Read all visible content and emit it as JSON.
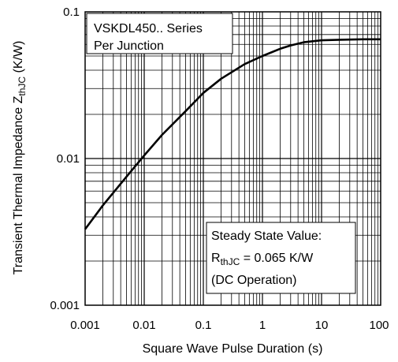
{
  "chart_data": {
    "type": "line",
    "title": "",
    "xlabel": "Square Wave Pulse Duration (s)",
    "ylabel": {
      "prefix": "Transient Thermal Impedance Z",
      "subscript": "thJC",
      "suffix": " (K/W)"
    },
    "x_scale": "log",
    "y_scale": "log",
    "xlim": [
      0.001,
      100
    ],
    "ylim": [
      0.001,
      0.1
    ],
    "grid": true,
    "x_tick_labels": [
      "0.001",
      "0.01",
      "0.1",
      "1",
      "10",
      "100"
    ],
    "y_tick_labels": [
      "0.001",
      "0.01",
      "0.1"
    ],
    "series": [
      {
        "x": [
          0.001,
          0.002,
          0.005,
          0.01,
          0.02,
          0.05,
          0.1,
          0.2,
          0.5,
          1,
          2,
          3,
          5,
          10,
          20,
          50,
          100
        ],
        "y": [
          0.0033,
          0.0048,
          0.0075,
          0.0105,
          0.0145,
          0.021,
          0.028,
          0.035,
          0.044,
          0.05,
          0.056,
          0.059,
          0.062,
          0.064,
          0.0645,
          0.065,
          0.065
        ]
      }
    ],
    "annotations": {
      "box1": {
        "line1": "VSKDL450.. Series",
        "line2": "Per Junction"
      },
      "box2": {
        "line1": "Steady State Value:",
        "line2_prefix": "R",
        "line2_sub": "thJC",
        "line2_suffix": " = 0.065 K/W",
        "line3": "(DC Operation)"
      }
    }
  }
}
